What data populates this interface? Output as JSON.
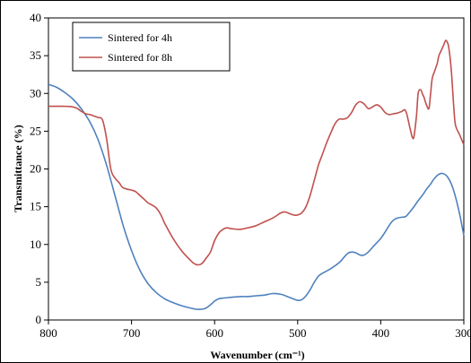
{
  "chart_data": {
    "type": "line",
    "title": "",
    "xlabel": "Wavenumber (cm⁻¹)",
    "ylabel": "Transmittance (%)",
    "xlim": [
      800,
      300
    ],
    "ylim": [
      0,
      40
    ],
    "x_reversed": true,
    "x_ticks": [
      800,
      700,
      600,
      500,
      400,
      300
    ],
    "y_ticks": [
      0,
      5,
      10,
      15,
      20,
      25,
      30,
      35,
      40
    ],
    "grid": false,
    "legend_position": "top-left",
    "series": [
      {
        "name": "Sintered for 4h",
        "color": "#4f81bd",
        "x": [
          800,
          790,
          780,
          770,
          760,
          750,
          740,
          730,
          720,
          710,
          700,
          690,
          680,
          670,
          660,
          650,
          640,
          630,
          620,
          612,
          605,
          600,
          595,
          590,
          580,
          570,
          560,
          550,
          540,
          530,
          520,
          510,
          500,
          495,
          490,
          485,
          480,
          475,
          470,
          460,
          450,
          445,
          440,
          435,
          430,
          425,
          420,
          415,
          410,
          405,
          400,
          395,
          390,
          385,
          380,
          375,
          370,
          365,
          360,
          355,
          350,
          345,
          340,
          335,
          330,
          325,
          320,
          315,
          310,
          305,
          300
        ],
        "y": [
          31.2,
          30.8,
          30.1,
          29.2,
          27.9,
          26.2,
          23.8,
          20.5,
          16.5,
          12.5,
          9.2,
          6.6,
          4.8,
          3.6,
          2.8,
          2.3,
          1.9,
          1.6,
          1.4,
          1.5,
          2.0,
          2.5,
          2.8,
          2.9,
          3.0,
          3.1,
          3.1,
          3.2,
          3.3,
          3.5,
          3.4,
          3.0,
          2.6,
          2.7,
          3.2,
          4.0,
          5.0,
          5.8,
          6.2,
          6.8,
          7.6,
          8.2,
          8.8,
          9.0,
          8.9,
          8.6,
          8.6,
          9.0,
          9.6,
          10.2,
          10.8,
          11.6,
          12.5,
          13.2,
          13.5,
          13.6,
          13.7,
          14.3,
          15.0,
          15.8,
          16.5,
          17.3,
          18.0,
          18.8,
          19.3,
          19.4,
          19.0,
          18.0,
          16.3,
          14.0,
          11.2
        ]
      },
      {
        "name": "Sintered for 8h",
        "color": "#c0504d",
        "x": [
          800,
          790,
          780,
          770,
          765,
          760,
          755,
          750,
          745,
          740,
          735,
          730,
          725,
          720,
          715,
          710,
          700,
          695,
          690,
          685,
          680,
          675,
          670,
          665,
          660,
          650,
          640,
          630,
          625,
          620,
          615,
          610,
          605,
          600,
          595,
          590,
          585,
          580,
          570,
          560,
          550,
          540,
          530,
          520,
          515,
          510,
          505,
          500,
          495,
          490,
          485,
          480,
          475,
          470,
          465,
          460,
          455,
          450,
          445,
          440,
          435,
          430,
          425,
          420,
          415,
          410,
          405,
          400,
          395,
          390,
          385,
          380,
          375,
          370,
          365,
          362,
          360,
          357,
          355,
          352,
          350,
          348,
          345,
          342,
          340,
          338,
          335,
          332,
          330,
          328,
          325,
          322,
          320,
          318,
          315,
          312,
          310,
          305,
          300
        ],
        "y": [
          28.3,
          28.3,
          28.3,
          28.2,
          28.0,
          27.6,
          27.3,
          27.2,
          27.0,
          26.8,
          26.5,
          24.0,
          20.0,
          18.8,
          18.2,
          17.5,
          17.2,
          17.0,
          16.5,
          16.0,
          15.5,
          15.2,
          14.8,
          14.0,
          12.8,
          10.8,
          9.2,
          8.0,
          7.5,
          7.3,
          7.5,
          8.2,
          9.0,
          10.5,
          11.5,
          12.0,
          12.2,
          12.1,
          12.0,
          12.2,
          12.5,
          13.0,
          13.5,
          14.2,
          14.3,
          14.1,
          13.9,
          13.9,
          14.2,
          15.0,
          16.5,
          18.5,
          20.5,
          22.0,
          23.5,
          24.8,
          26.0,
          26.6,
          26.6,
          26.8,
          27.5,
          28.5,
          28.9,
          28.6,
          28.0,
          28.2,
          28.5,
          28.2,
          27.5,
          27.2,
          27.3,
          27.4,
          27.6,
          27.7,
          25.5,
          24.2,
          24.3,
          27.0,
          30.0,
          30.5,
          30.0,
          29.5,
          28.5,
          28.0,
          30.0,
          32.0,
          33.0,
          34.0,
          35.0,
          35.5,
          36.2,
          37.0,
          36.8,
          36.0,
          33.0,
          28.0,
          25.8,
          24.5,
          23.2
        ]
      }
    ]
  }
}
